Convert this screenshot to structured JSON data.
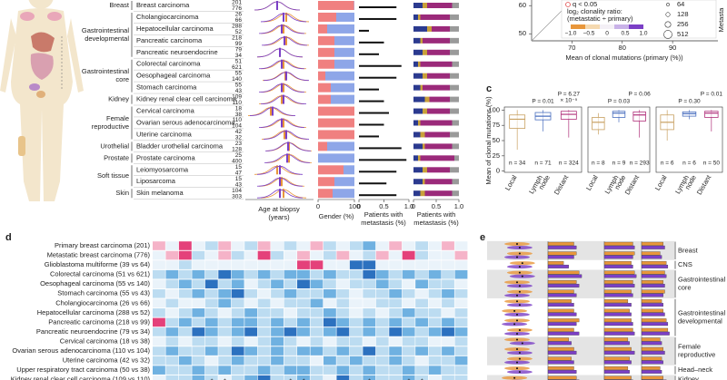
{
  "panel_a": {
    "type": "scatter",
    "xlim": [
      62,
      99
    ],
    "xticks": [
      70,
      80,
      90
    ],
    "ylim": [
      47.5,
      62
    ],
    "yticks": [
      50,
      60
    ],
    "x_label": "Mean of clonal mutations (primary (%))",
    "y_label": "Metasta",
    "legend_q": "q < 0.05",
    "legend_ratio": [
      "log₂ clonality ratio:",
      "(metastatic ÷ primary)"
    ],
    "colorbar_ticks": [
      {
        "value": -1,
        "label": "−1.0"
      },
      {
        "value": -0.5,
        "label": "−0.5"
      },
      0,
      0.5,
      {
        "value": 1,
        "label": "1.0"
      }
    ],
    "colorbar_colors": [
      "#e8963a",
      "#f5d9b0",
      "#f4f0f6",
      "#c9b2e8",
      "#7b3fc6"
    ],
    "sizes": [
      64,
      128,
      256,
      512
    ]
  },
  "panel_b": {
    "type": "bar",
    "groups": [
      [
        "Breast"
      ],
      [
        "Gastrointestinal",
        "developmental"
      ],
      [
        "Gastrointestinal",
        "core"
      ],
      [
        "Kidney"
      ],
      [
        "Female",
        "reproductive"
      ],
      [
        "Urothelial"
      ],
      [
        "Prostate"
      ],
      [
        "Soft tissue"
      ],
      [
        "Skin"
      ]
    ],
    "cancer_types": [
      "Breast carcinoma",
      "Cholangiocarcinoma",
      "Hepatocellular carcinoma",
      "Pancreatic carcinoma",
      "Pancreatic neuroendocrine",
      "Colorectal carcinoma",
      "Oesophageal carcinoma",
      "Stomach carcinoma",
      "Kidney renal clear cell carcinoma",
      "Cervical carcinoma",
      "Ovarian serous adenocarcinoma",
      "Uterine carcinoma",
      "Bladder urothelial carcinoma",
      "Prostate carcinoma",
      "Leiomyosarcoma",
      "Liposarcoma",
      "Skin melanoma"
    ],
    "n_primary": [
      201,
      26,
      288,
      218,
      79,
      51,
      55,
      55,
      109,
      18,
      110,
      42,
      23,
      25,
      15,
      15,
      104
    ],
    "n_metastatic": [
      776,
      66,
      52,
      99,
      34,
      621,
      140,
      43,
      110,
      38,
      104,
      32,
      128,
      400,
      47,
      43,
      303
    ],
    "primary_color": "#e8963a",
    "metastatic_color": "#7b3fc6",
    "age_xlim": [
      20,
      95
    ],
    "age_primary": [
      55,
      65,
      62,
      65,
      58,
      62,
      64,
      62,
      60,
      48,
      62,
      63,
      68,
      68,
      55,
      60,
      62
    ],
    "age_metastatic": [
      55,
      62,
      60,
      63,
      58,
      60,
      65,
      60,
      62,
      50,
      60,
      65,
      67,
      66,
      58,
      58,
      58
    ],
    "age_label": [
      "Age at biopsy",
      "(years)"
    ],
    "gender_female": [
      99,
      50,
      25,
      45,
      45,
      45,
      20,
      35,
      35,
      100,
      100,
      100,
      25,
      0,
      70,
      45,
      40
    ],
    "female_color": "#f08080",
    "male_color": "#8ea6e8",
    "gender_xlim": [
      0,
      100
    ],
    "gender_ticks": [
      0,
      100
    ],
    "gender_label": "Gender (%)",
    "metastasis": [
      0.75,
      0.75,
      0.2,
      0.5,
      0.4,
      0.85,
      0.75,
      0.4,
      0.5,
      0.6,
      0.5,
      0.4,
      0.85,
      0.95,
      0.75,
      0.55,
      0.75
    ],
    "metastasis_xlim": [
      0,
      1
    ],
    "metastasis_ticks": [
      0,
      0.5,
      {
        "value": 1,
        "label": "1.0"
      }
    ],
    "metastasis_label": [
      "Patients with",
      "metastasis (%)"
    ],
    "sites": [
      {
        "color": "#2b3a8f",
        "values": [
          0.2,
          0.1,
          0.3,
          0.15,
          0.2,
          0.1,
          0.2,
          0.15,
          0.25,
          0.2,
          0.1,
          0.15,
          0.2,
          0.1,
          0.2,
          0.2,
          0.15
        ]
      },
      {
        "color": "#c8a03a",
        "values": [
          0.1,
          0.05,
          0.1,
          0.05,
          0.1,
          0.05,
          0.1,
          0.05,
          0.1,
          0.1,
          0.05,
          0.1,
          0.05,
          0.05,
          0.1,
          0.05,
          0.1
        ]
      },
      {
        "color": "#9b2a7a",
        "values": [
          0.55,
          0.65,
          0.4,
          0.6,
          0.5,
          0.7,
          0.5,
          0.6,
          0.45,
          0.5,
          0.7,
          0.55,
          0.6,
          0.75,
          0.5,
          0.6,
          0.6
        ]
      },
      {
        "color": "#9a9a9a",
        "values": [
          0.15,
          0.2,
          0.2,
          0.2,
          0.2,
          0.15,
          0.2,
          0.2,
          0.2,
          0.2,
          0.15,
          0.2,
          0.15,
          0.1,
          0.2,
          0.15,
          0.15
        ]
      }
    ]
  },
  "panel_c": {
    "type": "box",
    "letter": "c",
    "ylim": [
      -2,
      105
    ],
    "yticks": [
      0,
      25,
      50,
      75,
      100
    ],
    "y_label": "Mean of clonal mutations (%)",
    "x_labels": [
      [
        "Local"
      ],
      [
        "Lymph",
        "node"
      ],
      [
        "Distant"
      ]
    ],
    "colors": [
      "#c8a060",
      "#4a6fbf",
      "#b0307a"
    ],
    "plots": [
      {
        "p_labels": [
          [
            "P = 0.01"
          ],
          [
            "P = 6.27",
            "× 10⁻⁵"
          ]
        ],
        "n_labels": [
          "n = 34",
          "n = 71",
          "n = 324"
        ],
        "boxes": [
          {
            "low": 35,
            "q1": 70,
            "median": 85,
            "q3": 92,
            "high": 100
          },
          {
            "low": 65,
            "q1": 84,
            "median": 90,
            "q3": 96,
            "high": 100
          },
          {
            "low": 55,
            "q1": 85,
            "median": 93,
            "q3": 98,
            "high": 100
          }
        ]
      },
      {
        "p_labels": [
          [
            "P = 0.03"
          ],
          [
            "P = 0.06"
          ]
        ],
        "n_labels": [
          "n = 8",
          "n = 9",
          "n = 293"
        ],
        "boxes": [
          {
            "low": 60,
            "q1": 68,
            "median": 80,
            "q3": 88,
            "high": 95
          },
          {
            "low": 80,
            "q1": 88,
            "median": 95,
            "q3": 98,
            "high": 100
          },
          {
            "low": 55,
            "q1": 82,
            "median": 92,
            "q3": 97,
            "high": 100
          }
        ]
      },
      {
        "p_labels": [
          [
            "P = 0.30"
          ],
          [
            "P = 0.01"
          ]
        ],
        "n_labels": [
          "n = 6",
          "n = 6",
          "n = 50"
        ],
        "boxes": [
          {
            "low": 50,
            "q1": 68,
            "median": 80,
            "q3": 92,
            "high": 100
          },
          {
            "low": 85,
            "q1": 90,
            "median": 94,
            "q3": 97,
            "high": 100
          },
          {
            "low": 65,
            "q1": 88,
            "median": 95,
            "q3": 98,
            "high": 100
          }
        ]
      }
    ]
  },
  "panel_d": {
    "type": "heatmap",
    "letter": "d",
    "rows": [
      "Primary breast carcinoma (201)",
      "Metastatic breast carcinoma (776)",
      "Glioblastoma multiforme (39 vs 64)",
      "Colorectal carcinoma (51 vs 621)",
      "Oesophageal carcinoma (55 vs 140)",
      "Stomach carcinoma (55 vs 43)",
      "Cholangiocarcinoma (26 vs 66)",
      "Hepatocellular carcinoma (288 vs 52)",
      "Pancreatic carcinoma (218 vs 99)",
      "Pancreatic neuroendocrine (79 vs 34)",
      "Cervical carcinoma (18 vs 38)",
      "Ovarian serous adenocarcinoma (110 vs 104)",
      "Uterine carcinoma (42 vs 32)",
      "Upper respiratory tract carcinoma (50 vs 38)",
      "Kidney renal clear cell carcinoma (109 vs 110)"
    ],
    "scale_min": -2,
    "colors": [
      "#e4417a",
      "#f5b3c8",
      "#eaf3fa",
      "#bcdcf1",
      "#6fb1e1",
      "#2c71bf"
    ],
    "values": [
      [
        -1,
        0,
        -2,
        0,
        1,
        -1,
        0,
        1,
        -1,
        0,
        1,
        0,
        -1,
        1,
        0,
        1,
        2,
        0,
        -1,
        0,
        1,
        0,
        -1,
        0
      ],
      [
        0,
        -1,
        -2,
        1,
        0,
        -1,
        1,
        0,
        -2,
        1,
        0,
        -1,
        0,
        1,
        -1,
        0,
        1,
        -1,
        0,
        -2,
        1,
        0,
        0,
        -1
      ],
      [
        0,
        0,
        1,
        0,
        0,
        0,
        0,
        0,
        0,
        0,
        0,
        -2,
        -2,
        0,
        0,
        3,
        3,
        0,
        0,
        0,
        0,
        0,
        0,
        0
      ],
      [
        1,
        2,
        1,
        2,
        1,
        3,
        2,
        1,
        2,
        1,
        2,
        2,
        1,
        2,
        1,
        1,
        3,
        2,
        1,
        2,
        1,
        2,
        1,
        2
      ],
      [
        0,
        1,
        2,
        1,
        3,
        1,
        2,
        0,
        1,
        2,
        1,
        3,
        2,
        1,
        0,
        1,
        1,
        2,
        1,
        0,
        2,
        1,
        1,
        0
      ],
      [
        1,
        0,
        1,
        2,
        1,
        2,
        3,
        1,
        0,
        1,
        2,
        1,
        1,
        2,
        1,
        0,
        1,
        1,
        2,
        1,
        0,
        1,
        2,
        1
      ],
      [
        0,
        1,
        0,
        0,
        1,
        2,
        1,
        0,
        1,
        0,
        1,
        1,
        2,
        0,
        1,
        0,
        0,
        1,
        1,
        0,
        1,
        0,
        1,
        0
      ],
      [
        1,
        0,
        1,
        2,
        1,
        0,
        1,
        2,
        1,
        1,
        0,
        1,
        1,
        2,
        1,
        0,
        1,
        0,
        1,
        2,
        1,
        1,
        0,
        1
      ],
      [
        -2,
        1,
        2,
        1,
        2,
        1,
        2,
        2,
        1,
        2,
        1,
        2,
        1,
        3,
        2,
        1,
        2,
        1,
        2,
        1,
        2,
        1,
        2,
        1
      ],
      [
        1,
        2,
        1,
        3,
        2,
        1,
        2,
        3,
        1,
        2,
        3,
        2,
        1,
        2,
        3,
        1,
        2,
        1,
        3,
        2,
        1,
        2,
        3,
        2
      ],
      [
        0,
        1,
        0,
        1,
        1,
        0,
        1,
        0,
        1,
        2,
        1,
        0,
        1,
        0,
        1,
        1,
        0,
        1,
        0,
        1,
        1,
        0,
        0,
        1
      ],
      [
        1,
        2,
        1,
        1,
        2,
        1,
        3,
        2,
        1,
        2,
        1,
        2,
        2,
        1,
        2,
        1,
        3,
        1,
        2,
        1,
        2,
        1,
        2,
        1
      ],
      [
        1,
        1,
        2,
        1,
        0,
        1,
        2,
        1,
        1,
        2,
        1,
        1,
        0,
        2,
        1,
        2,
        1,
        1,
        2,
        1,
        0,
        1,
        1,
        2
      ],
      [
        2,
        1,
        1,
        2,
        1,
        2,
        1,
        1,
        2,
        1,
        2,
        2,
        1,
        1,
        2,
        1,
        2,
        1,
        1,
        2,
        1,
        2,
        1,
        1
      ],
      [
        0,
        1,
        1,
        2,
        1,
        0,
        1,
        2,
        3,
        1,
        1,
        2,
        1,
        0,
        3,
        1,
        2,
        1,
        1,
        2,
        1,
        0,
        1,
        1
      ]
    ],
    "star_label": "*",
    "star_row": 14,
    "star_columns": [
      4,
      5,
      10,
      11,
      16,
      19,
      20
    ]
  },
  "panel_e": {
    "type": "bar",
    "letter": "e",
    "groups": [
      [
        "Breast"
      ],
      [
        "CNS"
      ],
      [
        "Gastrointestinal",
        "core"
      ],
      [
        "Gastrointestinal",
        "developmental"
      ],
      [
        "Female",
        "reproductive"
      ],
      [
        "Head–neck"
      ],
      [
        "Kidney"
      ]
    ],
    "primary_color": "#e8963a",
    "metastatic_color": "#7b3fc6",
    "xlim": [
      0,
      1
    ],
    "violin": {
      "primary": [
        0.5,
        0.55,
        0.6,
        0.55,
        0.5,
        0.55,
        0.5,
        0.45,
        0.5,
        0.55,
        0.5,
        0.5,
        0.55,
        0.5,
        0.45
      ],
      "metastatic": [
        0.55,
        0.5,
        0.55,
        0.6,
        0.55,
        0.5,
        0.55,
        0.5,
        0.45,
        0.5,
        0.6,
        0.55,
        0.5,
        0.55,
        0.5
      ]
    },
    "columns": [
      {
        "primary": [
          0.5,
          0.55,
          0.3,
          0.6,
          0.55,
          0.5,
          0.45,
          0.5,
          0.6,
          0.5,
          0.4,
          0.5,
          0.45,
          0.5,
          0.55
        ],
        "metastatic": [
          0.55,
          0.5,
          0.4,
          0.65,
          0.6,
          0.55,
          0.5,
          0.55,
          0.55,
          0.6,
          0.45,
          0.55,
          0.5,
          0.55,
          0.6
        ]
      },
      {
        "primary": [
          0.85,
          0.9,
          0.8,
          0.9,
          0.85,
          0.8,
          0.7,
          0.75,
          0.8,
          0.85,
          0.7,
          0.8,
          0.75,
          0.7,
          0.8
        ],
        "metastatic": [
          0.9,
          0.85,
          0.85,
          0.95,
          0.9,
          0.85,
          0.8,
          0.8,
          0.85,
          0.9,
          0.75,
          0.9,
          0.8,
          0.75,
          0.85
        ]
      },
      {
        "primary": [
          0.7,
          0.6,
          0.8,
          0.75,
          0.7,
          0.75,
          0.65,
          0.7,
          0.8,
          0.85,
          0.6,
          0.7,
          0.65,
          0.6,
          0.7
        ],
        "metastatic": [
          0.75,
          0.65,
          0.85,
          0.8,
          0.75,
          0.7,
          0.7,
          0.75,
          0.85,
          0.9,
          0.65,
          0.75,
          0.7,
          0.65,
          0.8
        ]
      }
    ]
  }
}
